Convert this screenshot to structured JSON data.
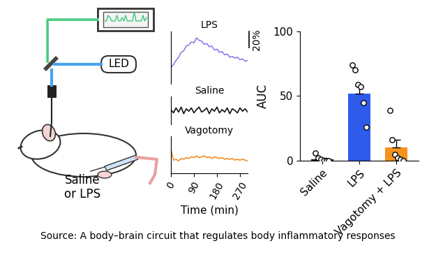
{
  "chart_data": [
    {
      "type": "line",
      "x": [
        0,
        10,
        20,
        30,
        40,
        50,
        60,
        70,
        80,
        90,
        100,
        110,
        120,
        130,
        140,
        150,
        160,
        170,
        180,
        190,
        200,
        210,
        220,
        230,
        240,
        250,
        260,
        270,
        280,
        290,
        300
      ],
      "series": [
        {
          "name": "LPS",
          "color": "#8b7fe8",
          "values": [
            0,
            4,
            9,
            13,
            19,
            21,
            27,
            28,
            32,
            31,
            37,
            34,
            33,
            29,
            30,
            26,
            27,
            22,
            23,
            19,
            20,
            16,
            17,
            13,
            14,
            12,
            13,
            10,
            11,
            8,
            9
          ]
        }
      ],
      "xlim": [
        0,
        300
      ],
      "ylim": [
        -20,
        45
      ],
      "tick_labels": false,
      "scale_bar": {
        "value": 20,
        "label": "20%"
      }
    },
    {
      "type": "line",
      "x": [
        0,
        10,
        20,
        30,
        40,
        50,
        60,
        70,
        80,
        90,
        100,
        110,
        120,
        130,
        140,
        150,
        160,
        170,
        180,
        190,
        200,
        210,
        220,
        230,
        240,
        250,
        260,
        270,
        280,
        290,
        300
      ],
      "series": [
        {
          "name": "Saline",
          "color": "#111111",
          "values": [
            1,
            -3,
            3,
            -2,
            4,
            -4,
            2,
            -1,
            3,
            -3,
            1,
            4,
            -2,
            0,
            3,
            -4,
            2,
            -1,
            4,
            -3,
            1,
            -2,
            3,
            -4,
            2,
            0,
            -3,
            3,
            -1,
            2,
            -2
          ]
        }
      ],
      "xlim": [
        0,
        300
      ],
      "ylim": [
        -17,
        17
      ],
      "tick_labels": false
    },
    {
      "type": "line",
      "x": [
        0,
        10,
        20,
        30,
        40,
        50,
        60,
        70,
        80,
        90,
        100,
        110,
        120,
        130,
        140,
        150,
        160,
        170,
        180,
        190,
        200,
        210,
        220,
        230,
        240,
        250,
        260,
        270,
        280,
        290,
        300
      ],
      "series": [
        {
          "name": "Vagotomy",
          "color": "#f28c28",
          "values": [
            14,
            1,
            2,
            0,
            3,
            2,
            4,
            3,
            5,
            4,
            6,
            4,
            5,
            6,
            4,
            5,
            3,
            5,
            4,
            3,
            4,
            2,
            3,
            2,
            3,
            1,
            2,
            1,
            2,
            1,
            0
          ]
        }
      ],
      "xlim": [
        0,
        300
      ],
      "ylim": [
        -15,
        30
      ],
      "xticks": [
        0,
        90,
        180,
        270
      ],
      "x_label": "Time (min)",
      "tick_labels": "x"
    },
    {
      "type": "bar",
      "categories": [
        "Saline",
        "LPS",
        "Vagotomy + LPS"
      ],
      "values": [
        1,
        52,
        10
      ],
      "errors": [
        1,
        6,
        6
      ],
      "points": [
        [
          6,
          2,
          1,
          0,
          0,
          0
        ],
        [
          74,
          70,
          59,
          57,
          45,
          26
        ],
        [
          39,
          16,
          5,
          2,
          1,
          0
        ]
      ],
      "colors": [
        "#000000",
        "#2f5bea",
        "#f5921e"
      ],
      "y_label": "AUC",
      "ylim": [
        0,
        100
      ],
      "yticks": [
        0,
        50,
        100
      ]
    }
  ],
  "schematic": {
    "device_label": "LED",
    "injection_label": "Saline\nor LPS"
  },
  "caption": "Source: A body–brain circuit that regulates body inflammatory responses"
}
